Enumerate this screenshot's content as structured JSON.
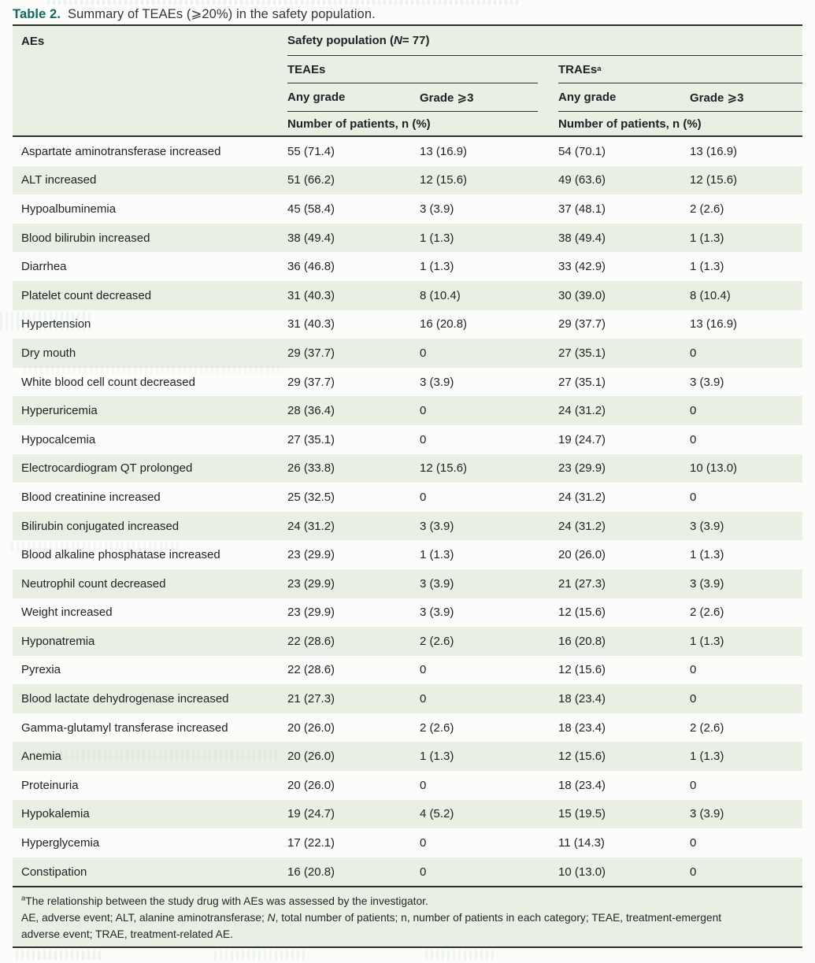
{
  "title": {
    "label": "Table 2.",
    "text": "Summary of TEAEs (⩾20%) in the safety population."
  },
  "table": {
    "col_aes": "AEs",
    "population": {
      "prefix": "Safety population (",
      "n": "N",
      "suffix": "= 77)"
    },
    "groups": [
      {
        "label": "TEAEs",
        "sup": ""
      },
      {
        "label": "TRAEs",
        "sup": "a"
      }
    ],
    "grade_cols": [
      "Any grade",
      "Grade ⩾3",
      "Any grade",
      "Grade ⩾3"
    ],
    "subheader_left": "Number of patients, n (%)",
    "subheader_right": "Number of patients, n (%)",
    "rows": [
      {
        "ae": "Aspartate aminotransferase increased",
        "values": [
          "55 (71.4)",
          "13 (16.9)",
          "54 (70.1)",
          "13 (16.9)"
        ]
      },
      {
        "ae": "ALT increased",
        "values": [
          "51 (66.2)",
          "12 (15.6)",
          "49 (63.6)",
          "12 (15.6)"
        ]
      },
      {
        "ae": "Hypoalbuminemia",
        "values": [
          "45 (58.4)",
          "3 (3.9)",
          "37 (48.1)",
          "2 (2.6)"
        ]
      },
      {
        "ae": "Blood bilirubin increased",
        "values": [
          "38 (49.4)",
          "1 (1.3)",
          "38 (49.4)",
          "1 (1.3)"
        ]
      },
      {
        "ae": "Diarrhea",
        "values": [
          "36 (46.8)",
          "1 (1.3)",
          "33 (42.9)",
          "1 (1.3)"
        ]
      },
      {
        "ae": "Platelet count decreased",
        "values": [
          "31 (40.3)",
          "8 (10.4)",
          "30 (39.0)",
          "8 (10.4)"
        ]
      },
      {
        "ae": "Hypertension",
        "values": [
          "31 (40.3)",
          "16 (20.8)",
          "29 (37.7)",
          "13 (16.9)"
        ]
      },
      {
        "ae": "Dry mouth",
        "values": [
          "29 (37.7)",
          "0",
          "27 (35.1)",
          "0"
        ]
      },
      {
        "ae": "White blood cell count decreased",
        "values": [
          "29 (37.7)",
          "3 (3.9)",
          "27 (35.1)",
          "3 (3.9)"
        ]
      },
      {
        "ae": "Hyperuricemia",
        "values": [
          "28 (36.4)",
          "0",
          "24 (31.2)",
          "0"
        ]
      },
      {
        "ae": "Hypocalcemia",
        "values": [
          "27 (35.1)",
          "0",
          "19 (24.7)",
          "0"
        ]
      },
      {
        "ae": "Electrocardiogram QT prolonged",
        "values": [
          "26 (33.8)",
          "12 (15.6)",
          "23 (29.9)",
          "10 (13.0)"
        ]
      },
      {
        "ae": "Blood creatinine increased",
        "values": [
          "25 (32.5)",
          "0",
          "24 (31.2)",
          "0"
        ]
      },
      {
        "ae": "Bilirubin conjugated increased",
        "values": [
          "24 (31.2)",
          "3 (3.9)",
          "24 (31.2)",
          "3 (3.9)"
        ]
      },
      {
        "ae": "Blood alkaline phosphatase increased",
        "values": [
          "23 (29.9)",
          "1 (1.3)",
          "20 (26.0)",
          "1 (1.3)"
        ]
      },
      {
        "ae": "Neutrophil count decreased",
        "values": [
          "23 (29.9)",
          "3 (3.9)",
          "21 (27.3)",
          "3 (3.9)"
        ]
      },
      {
        "ae": "Weight increased",
        "values": [
          "23 (29.9)",
          "3 (3.9)",
          "12 (15.6)",
          "2 (2.6)"
        ]
      },
      {
        "ae": "Hyponatremia",
        "values": [
          "22 (28.6)",
          "2 (2.6)",
          "16 (20.8)",
          "1 (1.3)"
        ]
      },
      {
        "ae": "Pyrexia",
        "values": [
          "22 (28.6)",
          "0",
          "12 (15.6)",
          "0"
        ]
      },
      {
        "ae": "Blood lactate dehydrogenase increased",
        "values": [
          "21 (27.3)",
          "0",
          "18 (23.4)",
          "0"
        ]
      },
      {
        "ae": "Gamma-glutamyl transferase increased",
        "values": [
          "20 (26.0)",
          "2 (2.6)",
          "18 (23.4)",
          "2 (2.6)"
        ]
      },
      {
        "ae": "Anemia",
        "values": [
          "20 (26.0)",
          "1 (1.3)",
          "12 (15.6)",
          "1 (1.3)"
        ]
      },
      {
        "ae": "Proteinuria",
        "values": [
          "20 (26.0)",
          "0",
          "18 (23.4)",
          "0"
        ]
      },
      {
        "ae": "Hypokalemia",
        "values": [
          "19 (24.7)",
          "4 (5.2)",
          "15 (19.5)",
          "3 (3.9)"
        ]
      },
      {
        "ae": "Hyperglycemia",
        "values": [
          "17 (22.1)",
          "0",
          "11 (14.3)",
          "0"
        ]
      },
      {
        "ae": "Constipation",
        "values": [
          "16 (20.8)",
          "0",
          "10 (13.0)",
          "0"
        ]
      }
    ]
  },
  "footnote": {
    "marker": "a",
    "line1": "The relationship between the study drug with AEs was assessed by the investigator.",
    "abbr_pre": "AE, adverse event; ALT, alanine aminotransferase; ",
    "abbr_n": "N",
    "abbr_mid": ", total number of patients; n, number of patients in each category; TEAE, treatment-emergent",
    "abbr_line2": "adverse event; TRAE, treatment-related AE."
  },
  "colors": {
    "accent_teal": "#0e6a5e",
    "stripe_green": "#e9efe2",
    "rule_dark": "#2d2f2c",
    "text": "#212225"
  }
}
